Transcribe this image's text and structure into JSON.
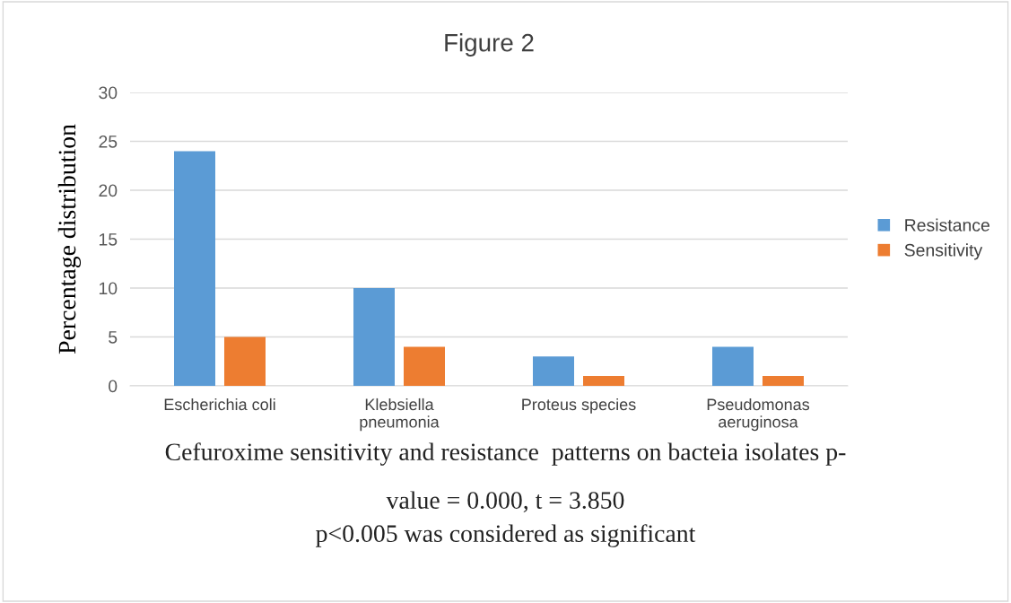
{
  "chart_data": {
    "type": "bar",
    "title": "Figure 2",
    "ylabel": "Percentage distribution",
    "categories": [
      "Escherichia coli",
      "Klebsiella\npneumonia",
      "Proteus species",
      "Pseudomonas\naeruginosa"
    ],
    "series": [
      {
        "name": "Resistance",
        "color": "#5b9bd5",
        "values": [
          24,
          10,
          3,
          4
        ]
      },
      {
        "name": "Sensitivity",
        "color": "#ed7d31",
        "values": [
          5,
          4,
          1,
          1
        ]
      }
    ],
    "ylim": [
      0,
      30
    ],
    "yticks": [
      0,
      5,
      10,
      15,
      20,
      25,
      30
    ],
    "grid": "y",
    "legend": "right",
    "annotations": [
      "Cefuroxime sensitivity and resistance  patterns on bacteia isolates p-",
      "value = 0.000, t = 3.850",
      "p<0.005 was considered as significant"
    ]
  }
}
